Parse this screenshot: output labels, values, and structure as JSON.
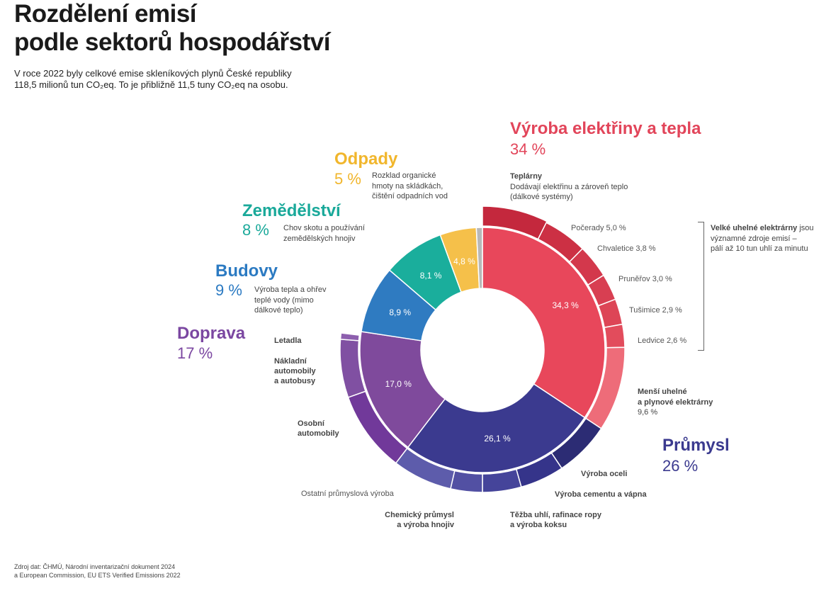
{
  "title_lines": [
    "Rozdělení emisí",
    "podle sektorů hospodářství"
  ],
  "subtitle_lines": [
    "V roce 2022 byly celkové emise skleníkových plynů České republiky",
    "118,5 milionů tun CO₂eq. To je přibližně 11,5 tuny CO₂eq na osobu."
  ],
  "sectors": {
    "elektrina": {
      "name": "Výroba elektřiny a tepla",
      "pct": "34 %",
      "color": "#e2455a"
    },
    "prumysl": {
      "name": "Průmysl",
      "pct": "26 %",
      "color": "#3b3a8f"
    },
    "doprava": {
      "name": "Doprava",
      "pct": "17 %",
      "color": "#7b47a1"
    },
    "budovy": {
      "name": "Budovy",
      "pct": "9 %",
      "color": "#2b7ac2",
      "desc": [
        "Výroba tepla a ohřev",
        "teplé vody (mimo",
        "dálkové teplo)"
      ]
    },
    "zemedelstvi": {
      "name": "Zemědělství",
      "pct": "8 %",
      "color": "#1aa99a",
      "desc": [
        "Chov skotu a používání",
        "zemědělských hnojiv"
      ]
    },
    "odpady": {
      "name": "Odpady",
      "pct": "5 %",
      "color": "#f1b62c",
      "desc": [
        "Rozklad organické",
        "hmoty na skládkách,",
        "čištění odpadních vod"
      ]
    }
  },
  "annotations": {
    "teplarny_title": "Teplárny",
    "teplarny_desc": [
      "Dodávají elektřinu a zároveň teplo",
      "(dálkové systémy)"
    ],
    "pocerady": "Počerady 5,0 %",
    "chvaletice": "Chvaletice 3,8 %",
    "prunerov": "Pruněřov 3,0 %",
    "tusimice": "Tušimice 2,9 %",
    "ledvice": "Ledvice 2,6 %",
    "velke_bold": "Velké uhelné elektrárny",
    "velke_rest": [
      " jsou",
      "významné zdroje emisí –",
      "pálí až 10 tun uhlí za minutu"
    ],
    "mensi": [
      "Menší uhelné",
      "a plynové elektrárny",
      "9,6 %"
    ],
    "oceli": "Výroba oceli",
    "cement": "Výroba cementu a vápna",
    "tezba": [
      "Těžba uhlí, rafinace ropy",
      "a výroba koksu"
    ],
    "chemicky": [
      "Chemický průmysl",
      "a výroba hnojiv"
    ],
    "ostatni": "Ostatní průmyslová výroba",
    "osobni": [
      "Osobní",
      "automobily"
    ],
    "nakladni": [
      "Nákladní",
      "automobily",
      "a autobusy"
    ],
    "letadla": "Letadla"
  },
  "source_lines": [
    "Zdroj dat: ČHMÚ, Národní inventarizační dokument 2024",
    "a European Commission, EU ETS Verified Emissions 2022"
  ],
  "chart_data": {
    "type": "pie",
    "subtype": "nested donut",
    "inner_ring": [
      {
        "name": "Výroba elektřiny a tepla",
        "value": 34.3,
        "label": "34,3 %",
        "color": "#e8475b"
      },
      {
        "name": "Průmysl",
        "value": 26.1,
        "label": "26,1 %",
        "color": "#3b3a8f"
      },
      {
        "name": "Doprava",
        "value": 17.0,
        "label": "17,0 %",
        "color": "#7f4a9c"
      },
      {
        "name": "Budovy",
        "value": 8.9,
        "label": "8,9 %",
        "color": "#2f7bc1"
      },
      {
        "name": "Zemědělství",
        "value": 8.1,
        "label": "8,1 %",
        "color": "#1aae9c"
      },
      {
        "name": "Odpady",
        "value": 4.8,
        "label": "4,8 %",
        "color": "#f5c04a"
      },
      {
        "name": "",
        "value": 0.8,
        "label": "",
        "color": "#b8b8b8"
      }
    ],
    "outer_ring": [
      {
        "name": "Teplárny",
        "value": 7.4,
        "color": "#c4283d"
      },
      {
        "name": "Počerady",
        "value": 5.0,
        "color": "#cc3044"
      },
      {
        "name": "Chvaletice",
        "value": 3.8,
        "color": "#d3384c"
      },
      {
        "name": "Pruněřov",
        "value": 3.0,
        "color": "#d83f52"
      },
      {
        "name": "Tušimice",
        "value": 2.9,
        "color": "#dd4556"
      },
      {
        "name": "Ledvice",
        "value": 2.6,
        "color": "#e24c5c"
      },
      {
        "name": "Menší uhelné a plynové elektrárny",
        "value": 9.6,
        "color": "#ee6c79"
      },
      {
        "name": "Výroba oceli",
        "value": 6.3,
        "color": "#2c2c74"
      },
      {
        "name": "Výroba cementu a vápna",
        "value": 5.0,
        "color": "#35348a"
      },
      {
        "name": "Těžba uhlí, rafinace ropy a výroba koksu",
        "value": 4.4,
        "color": "#45449a"
      },
      {
        "name": "Chemický průmysl a výroba hnojiv",
        "value": 3.6,
        "color": "#5250a3"
      },
      {
        "name": "Ostatní průmyslová výroba",
        "value": 6.8,
        "color": "#5d5cab"
      },
      {
        "name": "Osobní automobily",
        "value": 9.2,
        "color": "#71399a"
      },
      {
        "name": "Nákladní automobily a autobusy",
        "value": 6.6,
        "color": "#8050a2"
      },
      {
        "name": "Letadla",
        "value": 0.7,
        "color": "#8d5fae"
      }
    ]
  }
}
